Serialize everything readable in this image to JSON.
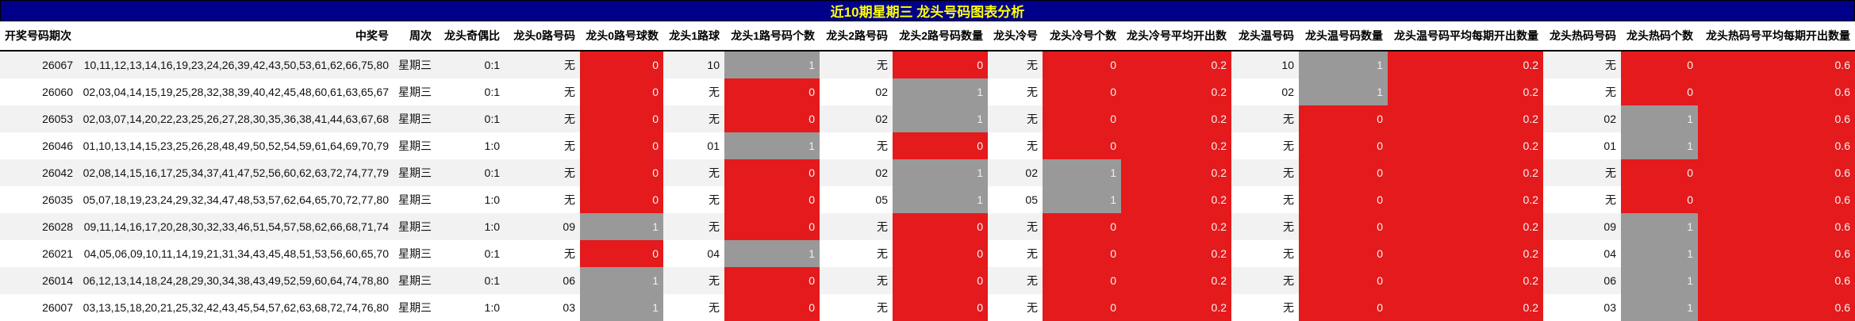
{
  "title": "近10期星期三 龙头号码图表分析",
  "colors": {
    "title_bg": "#00008b",
    "title_text": "#ffff00",
    "zero_count": "#e41a1c",
    "one_count": "#999999",
    "average": "#e41a1c"
  },
  "columns": [
    {
      "label": "开奖号码期次",
      "kind": "plain"
    },
    {
      "label": "中奖号",
      "kind": "plain"
    },
    {
      "label": "周次",
      "kind": "plain"
    },
    {
      "label": "龙头奇偶比",
      "kind": "plain"
    },
    {
      "label": "龙头0路号码",
      "kind": "plain"
    },
    {
      "label": "龙头0路号球数",
      "kind": "count"
    },
    {
      "label": "龙头1路球",
      "kind": "plain"
    },
    {
      "label": "龙头1路号码个数",
      "kind": "count"
    },
    {
      "label": "龙头2路号码",
      "kind": "plain"
    },
    {
      "label": "龙头2路号码数量",
      "kind": "count"
    },
    {
      "label": "龙头冷号",
      "kind": "plain"
    },
    {
      "label": "龙头冷号个数",
      "kind": "count"
    },
    {
      "label": "龙头冷号平均开出数",
      "kind": "avg"
    },
    {
      "label": "龙头温号码",
      "kind": "plain"
    },
    {
      "label": "龙头温号码数量",
      "kind": "count"
    },
    {
      "label": "龙头温号码平均每期开出数量",
      "kind": "avg"
    },
    {
      "label": "龙头热码号码",
      "kind": "plain"
    },
    {
      "label": "龙头热码个数",
      "kind": "count"
    },
    {
      "label": "龙头热码号平均每期开出数量",
      "kind": "avg"
    }
  ],
  "rows": [
    {
      "cells": [
        "26067",
        "10,11,12,13,14,16,19,23,24,26,39,42,43,50,53,61,62,66,75,80",
        "星期三",
        "0:1",
        "无",
        "0",
        "10",
        "1",
        "无",
        "0",
        "无",
        "0",
        "0.2",
        "10",
        "1",
        "0.2",
        "无",
        "0",
        "0.6"
      ]
    },
    {
      "cells": [
        "26060",
        "02,03,04,14,15,19,25,28,32,38,39,40,42,45,48,60,61,63,65,67",
        "星期三",
        "0:1",
        "无",
        "0",
        "无",
        "0",
        "02",
        "1",
        "无",
        "0",
        "0.2",
        "02",
        "1",
        "0.2",
        "无",
        "0",
        "0.6"
      ]
    },
    {
      "cells": [
        "26053",
        "02,03,07,14,20,22,23,25,26,27,28,30,35,36,38,41,44,63,67,68",
        "星期三",
        "0:1",
        "无",
        "0",
        "无",
        "0",
        "02",
        "1",
        "无",
        "0",
        "0.2",
        "无",
        "0",
        "0.2",
        "02",
        "1",
        "0.6"
      ]
    },
    {
      "cells": [
        "26046",
        "01,10,13,14,15,23,25,26,28,48,49,50,52,54,59,61,64,69,70,79",
        "星期三",
        "1:0",
        "无",
        "0",
        "01",
        "1",
        "无",
        "0",
        "无",
        "0",
        "0.2",
        "无",
        "0",
        "0.2",
        "01",
        "1",
        "0.6"
      ]
    },
    {
      "cells": [
        "26042",
        "02,08,14,15,16,17,25,34,37,41,47,52,56,60,62,63,72,74,77,79",
        "星期三",
        "0:1",
        "无",
        "0",
        "无",
        "0",
        "02",
        "1",
        "02",
        "1",
        "0.2",
        "无",
        "0",
        "0.2",
        "无",
        "0",
        "0.6"
      ]
    },
    {
      "cells": [
        "26035",
        "05,07,18,19,23,24,29,32,34,47,48,53,57,62,64,65,70,72,77,80",
        "星期三",
        "1:0",
        "无",
        "0",
        "无",
        "0",
        "05",
        "1",
        "05",
        "1",
        "0.2",
        "无",
        "0",
        "0.2",
        "无",
        "0",
        "0.6"
      ]
    },
    {
      "cells": [
        "26028",
        "09,11,14,16,17,20,28,30,32,33,46,51,54,57,58,62,66,68,71,74",
        "星期三",
        "1:0",
        "09",
        "1",
        "无",
        "0",
        "无",
        "0",
        "无",
        "0",
        "0.2",
        "无",
        "0",
        "0.2",
        "09",
        "1",
        "0.6"
      ]
    },
    {
      "cells": [
        "26021",
        "04,05,06,09,10,11,14,19,21,31,34,43,45,48,51,53,56,60,65,70",
        "星期三",
        "0:1",
        "无",
        "0",
        "04",
        "1",
        "无",
        "0",
        "无",
        "0",
        "0.2",
        "无",
        "0",
        "0.2",
        "04",
        "1",
        "0.6"
      ]
    },
    {
      "cells": [
        "26014",
        "06,12,13,14,18,24,28,29,30,34,38,43,49,52,59,60,64,74,78,80",
        "星期三",
        "0:1",
        "06",
        "1",
        "无",
        "0",
        "无",
        "0",
        "无",
        "0",
        "0.2",
        "无",
        "0",
        "0.2",
        "06",
        "1",
        "0.6"
      ]
    },
    {
      "cells": [
        "26007",
        "03,13,15,18,20,21,25,32,42,43,45,54,57,62,63,68,72,74,76,80",
        "星期三",
        "1:0",
        "03",
        "1",
        "无",
        "0",
        "无",
        "0",
        "无",
        "0",
        "0.2",
        "无",
        "0",
        "0.2",
        "03",
        "1",
        "0.6"
      ]
    }
  ]
}
